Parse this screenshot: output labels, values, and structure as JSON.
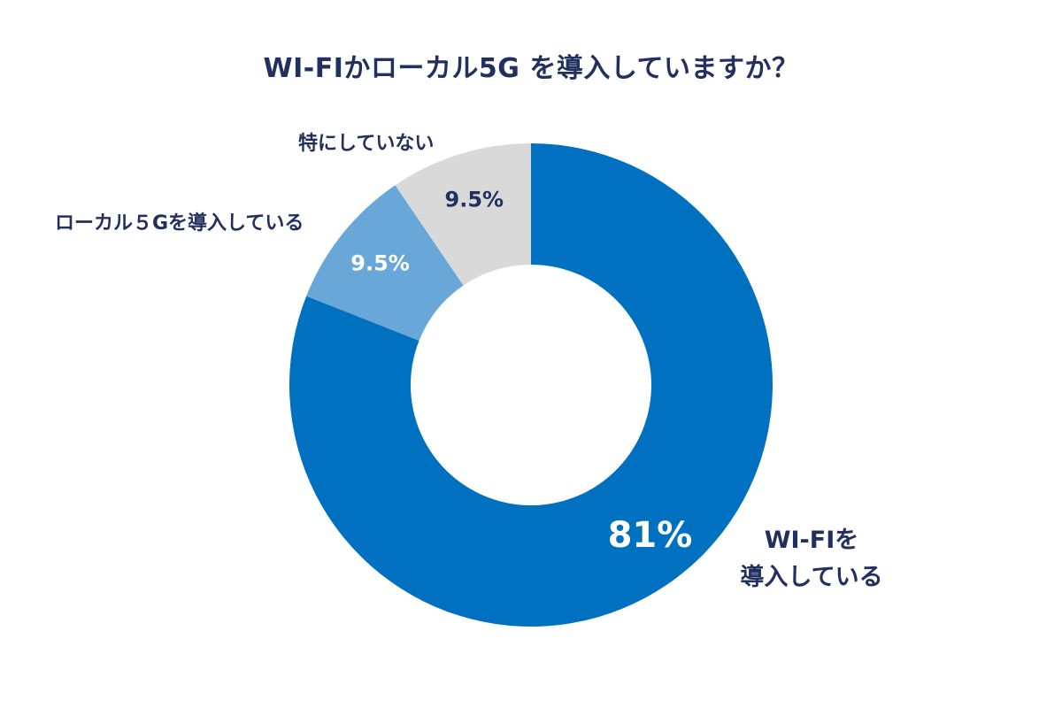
{
  "chart_data": {
    "type": "pie",
    "donut": true,
    "title": "WI-FIかローカル5G を導入していますか？",
    "slices": [
      {
        "label": "WI-FIを導入している",
        "label_lines": [
          "WI-FIを",
          "導入している"
        ],
        "value": 81,
        "value_label": "81%",
        "color": "#0070c0",
        "value_color": "#ffffff"
      },
      {
        "label": "ローカル５Gを導入している",
        "value": 9.5,
        "value_label": "9.5%",
        "color": "#68a7d8",
        "value_color": "#ffffff"
      },
      {
        "label": "特にしていない",
        "value": 9.5,
        "value_label": "9.5%",
        "color": "#d9d9d9",
        "value_color": "#22305f"
      }
    ]
  }
}
